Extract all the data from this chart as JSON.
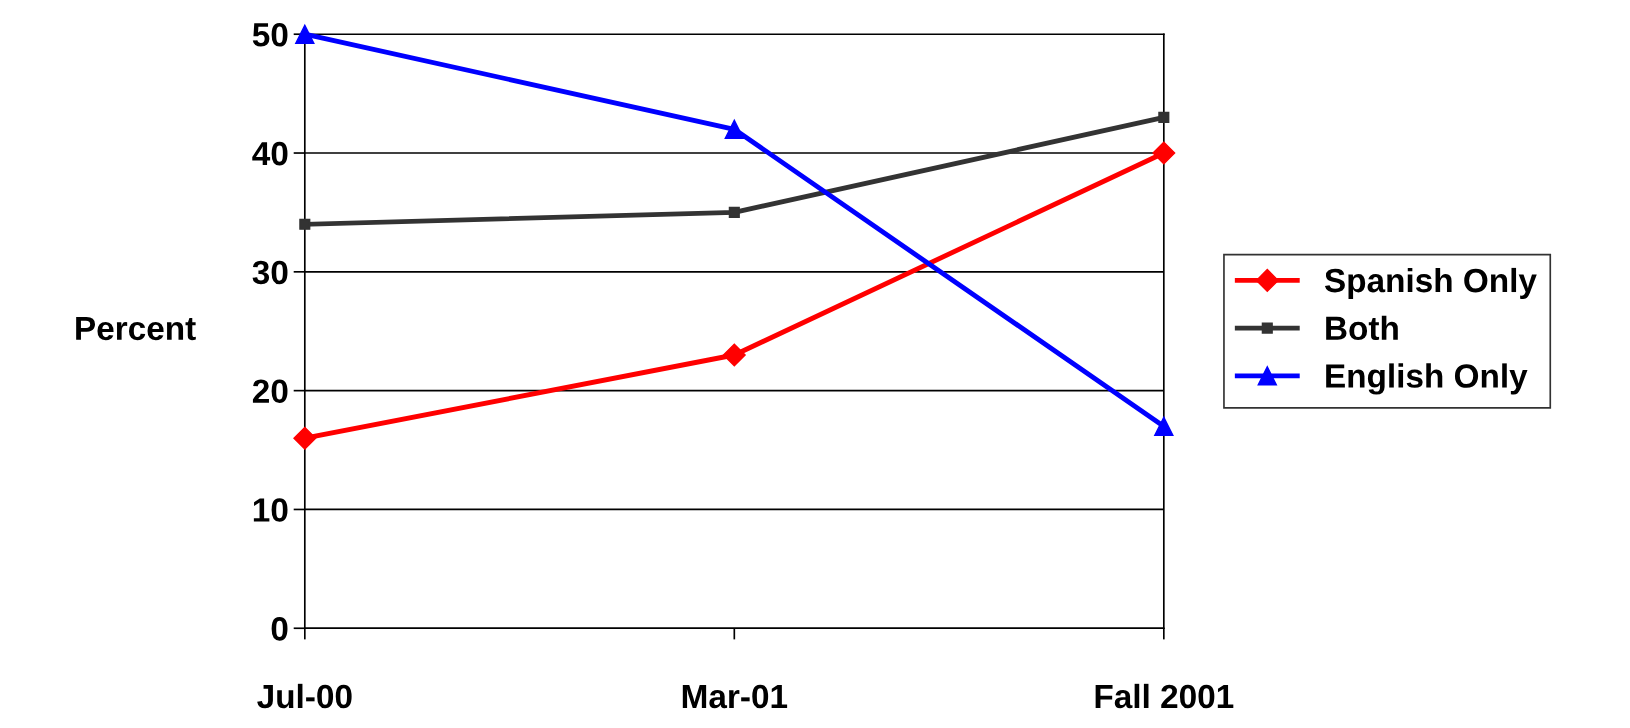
{
  "chart_data": {
    "type": "line",
    "ylabel": "Percent",
    "categories": [
      "Jul-00",
      "Mar-01",
      "Fall 2001"
    ],
    "series": [
      {
        "name": "Spanish Only",
        "color": "#ff0000",
        "marker": "diamond",
        "values": [
          16,
          23,
          40
        ]
      },
      {
        "name": "Both",
        "color": "#333333",
        "marker": "square",
        "values": [
          34,
          35,
          43
        ]
      },
      {
        "name": "English Only",
        "color": "#0000ff",
        "marker": "triangle",
        "values": [
          50,
          42,
          17
        ]
      }
    ],
    "ylim": [
      0,
      50
    ],
    "yticks": [
      0,
      10,
      20,
      30,
      40,
      50
    ],
    "grid": "y",
    "legend": "right"
  }
}
